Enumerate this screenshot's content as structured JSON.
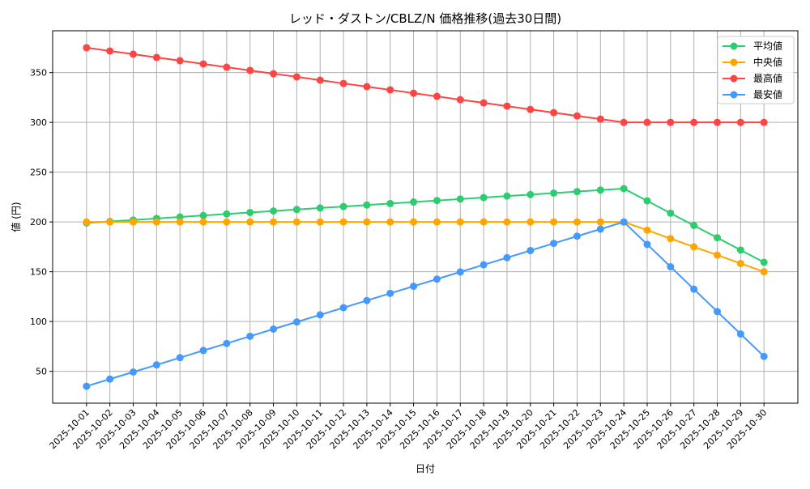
{
  "chart_data": {
    "type": "line",
    "title": "レッド・ダストン/CBLZ/N 価格推移(過去30日間)",
    "xlabel": "日付",
    "ylabel": "値 (円)",
    "grid": true,
    "legend_position": "top-right",
    "ylim": [
      18,
      392
    ],
    "yticks": [
      50,
      100,
      150,
      200,
      250,
      300,
      350
    ],
    "categories": [
      "2025-10-01",
      "2025-10-02",
      "2025-10-03",
      "2025-10-04",
      "2025-10-05",
      "2025-10-06",
      "2025-10-07",
      "2025-10-08",
      "2025-10-09",
      "2025-10-10",
      "2025-10-11",
      "2025-10-12",
      "2025-10-13",
      "2025-10-14",
      "2025-10-15",
      "2025-10-16",
      "2025-10-17",
      "2025-10-18",
      "2025-10-19",
      "2025-10-20",
      "2025-10-21",
      "2025-10-22",
      "2025-10-23",
      "2025-10-24",
      "2025-10-25",
      "2025-10-26",
      "2025-10-27",
      "2025-10-28",
      "2025-10-29",
      "2025-10-30"
    ],
    "series": [
      {
        "name": "平均値",
        "color": "#2ecc71",
        "values": [
          199.0,
          200.5,
          202.0,
          203.5,
          205.0,
          206.5,
          208.0,
          209.5,
          211.0,
          212.5,
          214.0,
          215.5,
          217.0,
          218.5,
          220.0,
          221.5,
          223.0,
          224.5,
          226.0,
          227.5,
          229.0,
          230.5,
          232.0,
          233.5,
          221.2,
          208.8,
          196.5,
          184.2,
          171.8,
          159.5
        ]
      },
      {
        "name": "中央値",
        "color": "#ffa500",
        "values": [
          200,
          200,
          200,
          200,
          200,
          200,
          200,
          200,
          200,
          200,
          200,
          200,
          200,
          200,
          200,
          200,
          200,
          200,
          200,
          200,
          200,
          200,
          200,
          200,
          191.7,
          183.3,
          175.0,
          166.7,
          158.3,
          150.0
        ]
      },
      {
        "name": "最高値",
        "color": "#ff4444",
        "values": [
          375.0,
          371.7,
          368.5,
          365.2,
          362.0,
          358.7,
          355.4,
          352.2,
          348.9,
          345.7,
          342.4,
          339.1,
          335.9,
          332.6,
          329.3,
          326.1,
          322.8,
          319.6,
          316.3,
          313.0,
          309.8,
          306.5,
          303.3,
          300.0,
          300,
          300,
          300,
          300,
          300,
          300
        ]
      },
      {
        "name": "最安値",
        "color": "#4499ff",
        "values": [
          35.0,
          42.2,
          49.3,
          56.5,
          63.7,
          70.9,
          78.0,
          85.2,
          92.4,
          99.6,
          106.7,
          113.9,
          121.1,
          128.3,
          135.4,
          142.6,
          149.8,
          157.0,
          164.1,
          171.3,
          178.5,
          185.7,
          192.8,
          200.0,
          177.5,
          155.0,
          132.5,
          110.0,
          87.5,
          65.0
        ]
      }
    ]
  }
}
